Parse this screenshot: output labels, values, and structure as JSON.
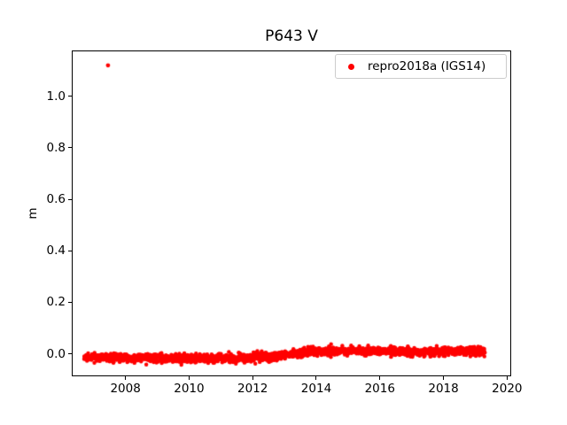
{
  "figure": {
    "title": "P643 V",
    "ylabel": "m"
  },
  "legend": {
    "label": "repro2018a (IGS14)",
    "marker_color": "#ff0000",
    "position": "upper right"
  },
  "chart_data": {
    "type": "scatter",
    "title": "P643 V",
    "xlabel": "",
    "ylabel": "m",
    "grid": false,
    "xlim": [
      2006.31,
      2020.13
    ],
    "ylim": [
      -0.0875,
      1.178
    ],
    "xticks": [
      2008,
      2010,
      2012,
      2014,
      2016,
      2018,
      2020
    ],
    "xtick_labels": [
      "2008",
      "2010",
      "2012",
      "2014",
      "2016",
      "2018",
      "2020"
    ],
    "yticks": [
      0.0,
      0.2,
      0.4,
      0.6,
      0.8,
      1.0
    ],
    "ytick_labels": [
      "0.0",
      "0.2",
      "0.4",
      "0.6",
      "0.8",
      "1.0"
    ],
    "legend_position": "upper right",
    "series": [
      {
        "name": "repro2018a (IGS14)",
        "color": "#ff0000",
        "marker": "dot",
        "marker_radius_px": 2.2,
        "band": {
          "x_start": 2006.7,
          "x_end": 2019.3,
          "n_points": 2000,
          "noise_std": 0.008,
          "seed": 42,
          "mean_anchors": [
            [
              2006.7,
              -0.015
            ],
            [
              2008.0,
              -0.016
            ],
            [
              2010.0,
              -0.017
            ],
            [
              2011.8,
              -0.018
            ],
            [
              2012.8,
              -0.008
            ],
            [
              2013.8,
              0.008
            ],
            [
              2015.0,
              0.012
            ],
            [
              2016.5,
              0.01
            ],
            [
              2017.3,
              0.006
            ],
            [
              2018.2,
              0.01
            ],
            [
              2019.3,
              0.008
            ]
          ]
        },
        "outliers": [
          [
            2007.45,
            1.12
          ]
        ]
      }
    ]
  }
}
